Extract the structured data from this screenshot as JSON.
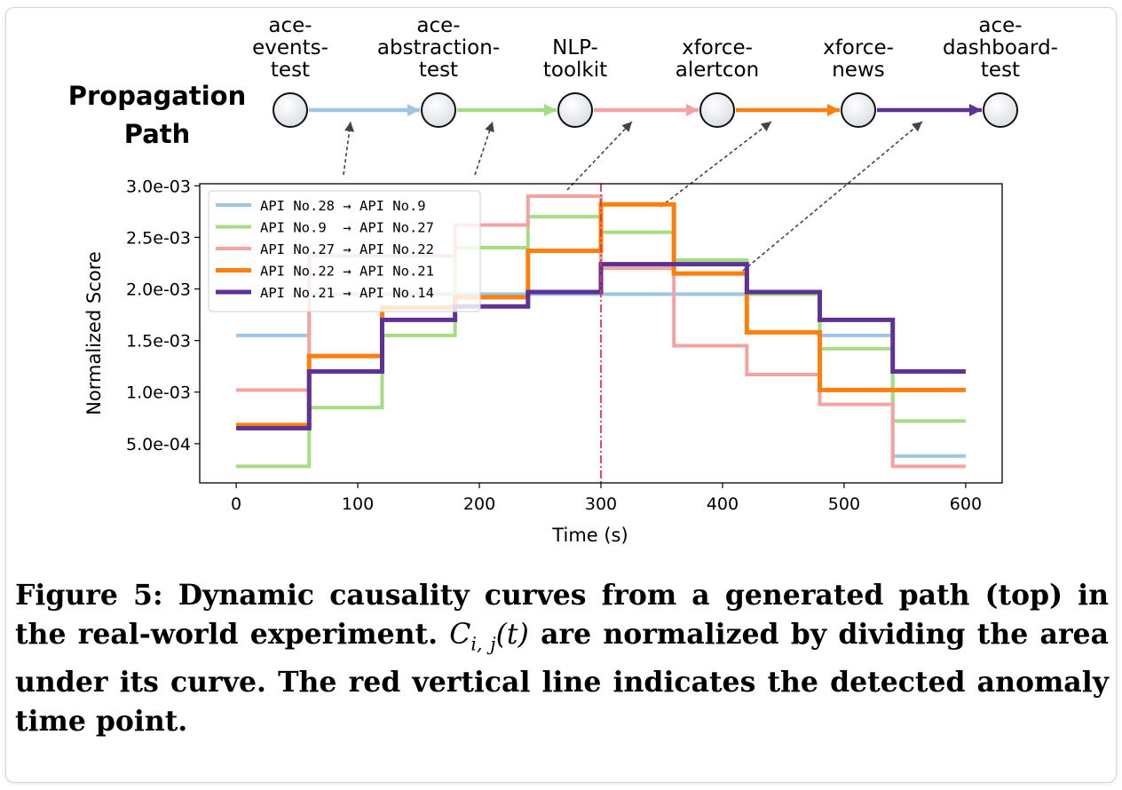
{
  "propagation": {
    "heading_line1": "Propagation",
    "heading_line2": "Path",
    "nodes": [
      {
        "lines": [
          "ace-",
          "events-",
          "test"
        ]
      },
      {
        "lines": [
          "ace-",
          "abstraction-",
          "test"
        ]
      },
      {
        "lines": [
          "NLP-",
          "toolkit"
        ]
      },
      {
        "lines": [
          "xforce-",
          "alertcon"
        ]
      },
      {
        "lines": [
          "xforce-",
          "news"
        ]
      },
      {
        "lines": [
          "ace-",
          "dashboard-",
          "test"
        ]
      }
    ],
    "edge_colors": [
      "#9ec5e2",
      "#a6dc84",
      "#f4a3a3",
      "#ff7f0e",
      "#5e3197"
    ]
  },
  "chart_data": {
    "type": "line",
    "step": true,
    "xlabel": "Time (s)",
    "ylabel": "Normalized Score",
    "xlim": [
      -30,
      630
    ],
    "ylim": [
      0.00012,
      0.00302
    ],
    "xticks": [
      0,
      100,
      200,
      300,
      400,
      500,
      600
    ],
    "xtick_labels": [
      "0",
      "100",
      "200",
      "300",
      "400",
      "500",
      "600"
    ],
    "yticks": [
      0.0005,
      0.001,
      0.0015,
      0.002,
      0.0025,
      0.003
    ],
    "ytick_labels": [
      "5.0e-04",
      "1.0e-03",
      "1.5e-03",
      "2.0e-03",
      "2.5e-03",
      "3.0e-03"
    ],
    "legend_position": "top-left",
    "anomaly_time": 300,
    "anomaly_color": "#e0364b",
    "x": [
      0,
      60,
      120,
      180,
      240,
      300,
      360,
      420,
      480,
      540,
      600
    ],
    "series": [
      {
        "name": "API No.28 → API No.9",
        "color": "#9ec5e2",
        "values": [
          0.00155,
          0.00195,
          0.00195,
          0.00195,
          0.00195,
          0.00195,
          0.00195,
          0.00195,
          0.00155,
          0.00038,
          0.00038
        ]
      },
      {
        "name": "API No.9  → API No.27",
        "color": "#a6dc84",
        "values": [
          0.00028,
          0.00085,
          0.00155,
          0.0024,
          0.0027,
          0.00255,
          0.00228,
          0.00195,
          0.00142,
          0.00072,
          0.00072
        ]
      },
      {
        "name": "API No.27 → API No.22",
        "color": "#f4a3a3",
        "values": [
          0.00102,
          0.00232,
          0.00232,
          0.00262,
          0.0029,
          0.0022,
          0.00145,
          0.00117,
          0.00088,
          0.00028,
          0.00028
        ]
      },
      {
        "name": "API No.22 → API No.21",
        "color": "#ff7f0e",
        "values": [
          0.00068,
          0.00135,
          0.00182,
          0.00192,
          0.00237,
          0.00282,
          0.00215,
          0.00158,
          0.00102,
          0.00102,
          0.00102
        ]
      },
      {
        "name": "API No.21 → API No.14",
        "color": "#5e3197",
        "values": [
          0.00065,
          0.0012,
          0.0017,
          0.00183,
          0.00197,
          0.00224,
          0.00224,
          0.00197,
          0.0017,
          0.0012,
          0.0012
        ]
      }
    ]
  },
  "caption": {
    "prefix": "Figure 5:  Dynamic causality curves from a generated path (top) in the real-world experiment. ",
    "math": "C",
    "math_sub": "i, j",
    "math_arg": "(t)",
    "suffix": " are normalized by dividing the area under its curve. The red vertical line indicates the detected anomaly time point."
  }
}
